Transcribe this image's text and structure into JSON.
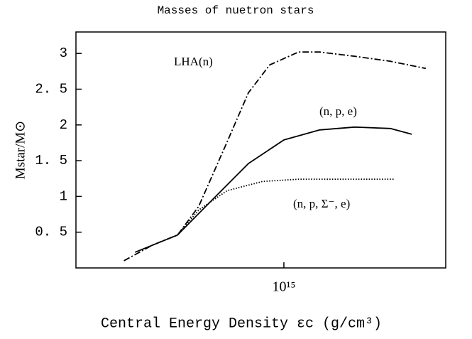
{
  "chart_data": {
    "type": "line",
    "title": "Masses of nuetron stars",
    "x_label": "Central Energy Density   εc (g/cm³)",
    "y_label": "Mstar/M⊙",
    "x_scale": "log",
    "xlim": [
      200000000000000.0,
      3500000000000000.0
    ],
    "xticks": [
      {
        "value": 1000000000000000.0,
        "label": "10¹⁵"
      }
    ],
    "ylim": [
      0,
      3.3
    ],
    "yticks": [
      {
        "value": 0.5,
        "label": "0. 5"
      },
      1,
      {
        "value": 1.5,
        "label": "1. 5"
      },
      2,
      {
        "value": 2.5,
        "label": "2. 5"
      },
      3
    ],
    "grid": false,
    "series": [
      {
        "name": "LHA(n)",
        "color": "#000000",
        "dash": "dashdot",
        "x": [
          290000000000000.0,
          362000000000000.0,
          439000000000000.0,
          517000000000000.0,
          644000000000000.0,
          760000000000000.0,
          896000000000000.0,
          1120000000000000.0,
          1320000000000000.0,
          1730000000000000.0,
          2280000000000000.0,
          3000000000000000.0
        ],
        "values": [
          0.1,
          0.32,
          0.46,
          0.86,
          1.76,
          2.45,
          2.84,
          3.02,
          3.02,
          2.96,
          2.89,
          2.79
        ]
      },
      {
        "name": "(n, p, e)",
        "color": "#000000",
        "dash": "solid",
        "x": [
          316000000000000.0,
          439000000000000.0,
          577000000000000.0,
          760000000000000.0,
          1000000000000000.0,
          1320000000000000.0,
          1730000000000000.0,
          2280000000000000.0,
          2690000000000000.0
        ],
        "values": [
          0.22,
          0.46,
          0.96,
          1.46,
          1.79,
          1.93,
          1.97,
          1.95,
          1.87
        ]
      },
      {
        "name": "(n, p, Σ⁻, e)",
        "color": "#000000",
        "dash": "dotted",
        "x": [
          439000000000000.0,
          517000000000000.0,
          644000000000000.0,
          848000000000000.0,
          1120000000000000.0,
          1730000000000000.0,
          2340000000000000.0
        ],
        "values": [
          0.46,
          0.81,
          1.08,
          1.21,
          1.24,
          1.24,
          1.24
        ]
      }
    ]
  }
}
